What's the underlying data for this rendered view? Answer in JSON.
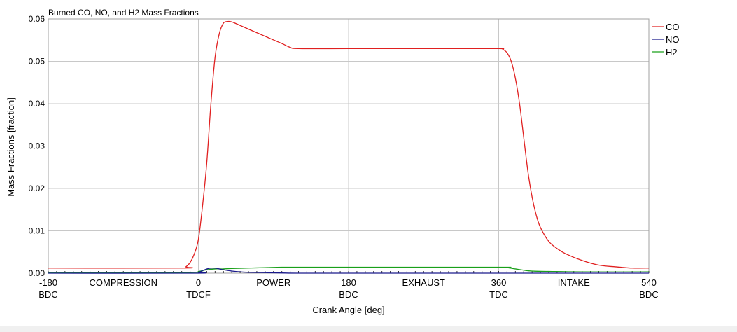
{
  "chart_data": {
    "type": "line",
    "title": "Burned CO, NO, and H2 Mass Fractions",
    "xlabel": "Crank Angle [deg]",
    "ylabel": "Mass Fractions [fraction]",
    "xlim": [
      -180,
      540
    ],
    "ylim": [
      0,
      0.06
    ],
    "x_ticks": [
      {
        "value": -180,
        "label": "-180",
        "sub": "BDC"
      },
      {
        "value": 0,
        "label": "0",
        "sub": "TDCF"
      },
      {
        "value": 180,
        "label": "180",
        "sub": "BDC"
      },
      {
        "value": 360,
        "label": "360",
        "sub": "TDC"
      },
      {
        "value": 540,
        "label": "540",
        "sub": "BDC"
      }
    ],
    "phase_labels": [
      {
        "x": -90,
        "label": "COMPRESSION"
      },
      {
        "x": 90,
        "label": "POWER"
      },
      {
        "x": 270,
        "label": "EXHAUST"
      },
      {
        "x": 450,
        "label": "INTAKE"
      }
    ],
    "y_ticks": [
      {
        "value": 0,
        "label": "0.00"
      },
      {
        "value": 0.01,
        "label": "0.01"
      },
      {
        "value": 0.02,
        "label": "0.02"
      },
      {
        "value": 0.03,
        "label": "0.03"
      },
      {
        "value": 0.04,
        "label": "0.04"
      },
      {
        "value": 0.05,
        "label": "0.05"
      },
      {
        "value": 0.06,
        "label": "0.06"
      }
    ],
    "grid": true,
    "legend_position": "right",
    "series": [
      {
        "name": "CO",
        "color": "#e02020",
        "x": [
          -180,
          -20,
          -15,
          -10,
          -5,
          0,
          5,
          10,
          15,
          20,
          25,
          30,
          35,
          40,
          45,
          60,
          80,
          100,
          110,
          120,
          180,
          250,
          300,
          360,
          365,
          370,
          375,
          380,
          385,
          390,
          395,
          400,
          405,
          410,
          420,
          430,
          440,
          460,
          480,
          500,
          520,
          540
        ],
        "y": [
          0.0012,
          0.0012,
          0.0015,
          0.0025,
          0.0045,
          0.008,
          0.016,
          0.026,
          0.04,
          0.051,
          0.0565,
          0.059,
          0.0594,
          0.0593,
          0.0589,
          0.0576,
          0.0559,
          0.0542,
          0.0533,
          0.053,
          0.053,
          0.053,
          0.053,
          0.053,
          0.0528,
          0.052,
          0.05,
          0.046,
          0.04,
          0.032,
          0.024,
          0.018,
          0.0137,
          0.0108,
          0.0075,
          0.0058,
          0.0046,
          0.003,
          0.0019,
          0.0015,
          0.0012,
          0.0012
        ]
      },
      {
        "name": "NO",
        "color": "#1a1a8c",
        "x": [
          -180,
          -5,
          0,
          5,
          10,
          15,
          20,
          25,
          30,
          40,
          50,
          60,
          80,
          100,
          120,
          180,
          360,
          540
        ],
        "y": [
          0.0,
          0.0,
          0.0002,
          0.0006,
          0.001,
          0.0012,
          0.0012,
          0.001,
          0.0008,
          0.0005,
          0.0003,
          0.0002,
          0.00012,
          5e-05,
          0.0,
          0.0,
          0.0,
          0.0
        ]
      },
      {
        "name": "H2",
        "color": "#1aa01a",
        "x": [
          -180,
          -10,
          0,
          10,
          20,
          30,
          40,
          60,
          80,
          100,
          120,
          180,
          360,
          365,
          370,
          380,
          390,
          400,
          420,
          460,
          540
        ],
        "y": [
          0.0002,
          0.0002,
          0.0004,
          0.0008,
          0.001,
          0.001,
          0.0011,
          0.0012,
          0.0013,
          0.0014,
          0.0014,
          0.0014,
          0.0014,
          0.0014,
          0.0013,
          0.001,
          0.0007,
          0.0005,
          0.0004,
          0.0003,
          0.0003
        ]
      }
    ]
  }
}
